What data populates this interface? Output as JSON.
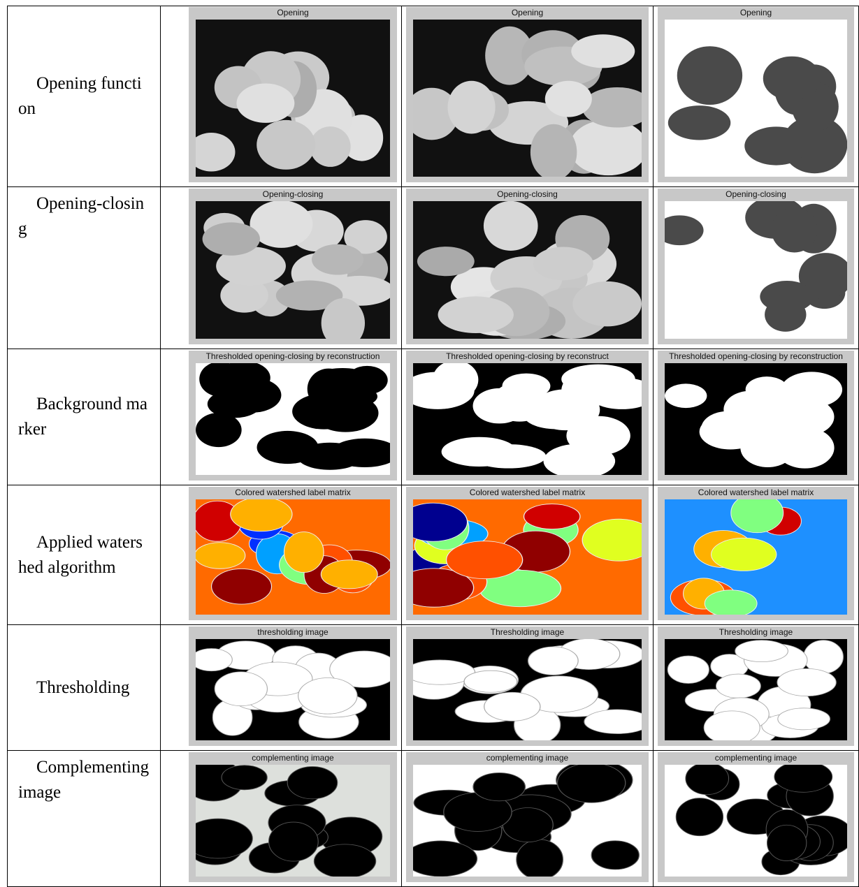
{
  "table": {
    "rows": [
      {
        "label": "Opening function",
        "images": [
          "Opening",
          "Opening",
          "Opening"
        ]
      },
      {
        "label": "Opening-closing",
        "images": [
          "Opening-closing",
          "Opening-closing",
          "Opening-closing"
        ]
      },
      {
        "label": "Background marker",
        "images": [
          "Thresholded opening-closing by reconstruction",
          "Thresholded opening-closing by reconstruct",
          "Thresholded opening-closing by reconstruction"
        ]
      },
      {
        "label": "Applied watershed algorithm",
        "images": [
          "Colored watershed label matrix",
          "Colored watershed label matrix",
          "Colored watershed label matrix"
        ]
      },
      {
        "label": "Thresholding",
        "images": [
          "thresholding image",
          "Thresholding image",
          "Thresholding image"
        ]
      },
      {
        "label": "Complementing image",
        "images": [
          "complementing image",
          "complementing image",
          "complementing image"
        ]
      }
    ]
  }
}
